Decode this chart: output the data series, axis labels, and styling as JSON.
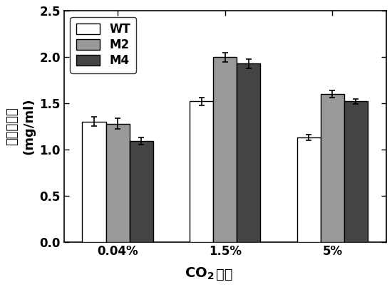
{
  "categories": [
    "0.04%",
    "1.5%",
    "5%"
  ],
  "series": [
    {
      "label": "WT",
      "values": [
        1.3,
        1.52,
        1.13
      ],
      "errors": [
        0.05,
        0.04,
        0.03
      ],
      "color": "#ffffff",
      "edgecolor": "#000000"
    },
    {
      "label": "M2",
      "values": [
        1.28,
        2.0,
        1.6
      ],
      "errors": [
        0.06,
        0.05,
        0.04
      ],
      "color": "#999999",
      "edgecolor": "#000000"
    },
    {
      "label": "M4",
      "values": [
        1.09,
        1.93,
        1.52
      ],
      "errors": [
        0.04,
        0.05,
        0.03
      ],
      "color": "#444444",
      "edgecolor": "#000000"
    }
  ],
  "ylabel_top": "干物质重量",
  "ylabel_bottom": "(mg/ml)",
  "ylim": [
    0.0,
    2.5
  ],
  "yticks": [
    0.0,
    0.5,
    1.0,
    1.5,
    2.0,
    2.5
  ],
  "bar_width": 0.22,
  "figsize": [
    5.5,
    4.03
  ],
  "dpi": 100,
  "legend_fontsize": 12,
  "tick_fontsize": 12,
  "background_color": "#ffffff"
}
